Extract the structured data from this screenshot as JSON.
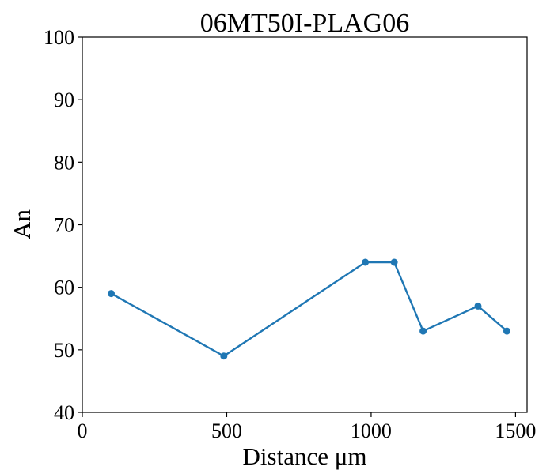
{
  "chart_data": {
    "type": "line",
    "title": "06MT50I-PLAG06",
    "xlabel": "Distance μm",
    "ylabel": "An",
    "xlim": [
      0,
      1540
    ],
    "ylim": [
      40,
      100
    ],
    "x_ticks": [
      0,
      500,
      1000,
      1500
    ],
    "y_ticks": [
      40,
      50,
      60,
      70,
      80,
      90,
      100
    ],
    "grid": false,
    "series": [
      {
        "color": "#1f77b4",
        "x": [
          100,
          490,
          980,
          1080,
          1180,
          1370,
          1470
        ],
        "y": [
          59,
          49,
          64,
          64,
          53,
          57,
          53
        ]
      }
    ]
  }
}
